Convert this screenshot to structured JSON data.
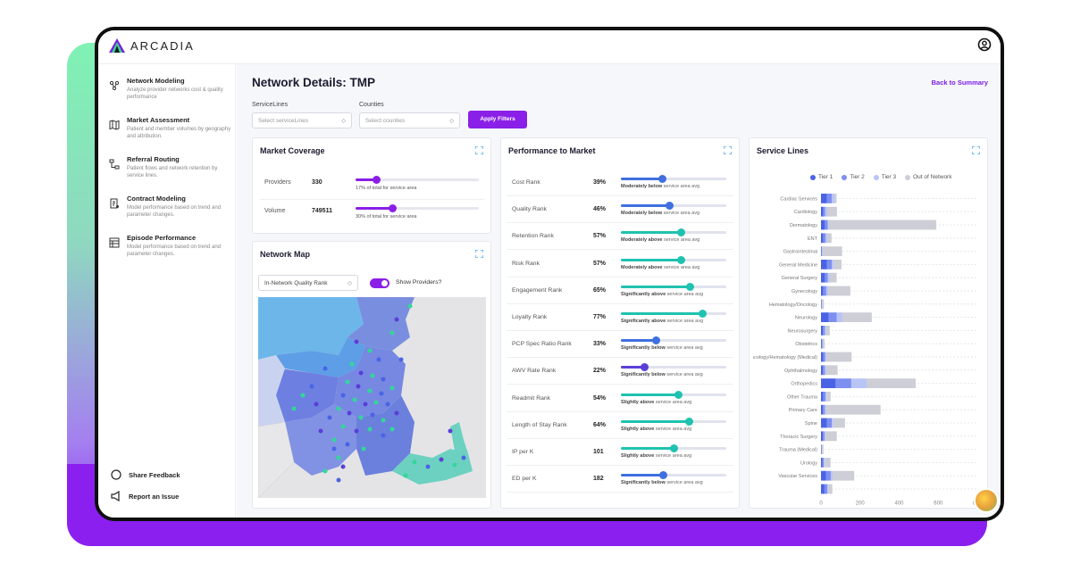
{
  "app": {
    "name": "ARCADIA"
  },
  "sidebar": {
    "items": [
      {
        "title": "Network Modeling",
        "desc": "Analyze provider networks cost & quality performance",
        "icon": "network-icon"
      },
      {
        "title": "Market Assessment",
        "desc": "Patient and member volumes by geography and attribution.",
        "icon": "map-icon"
      },
      {
        "title": "Referral Routing",
        "desc": "Patient flows and network retention by service lines.",
        "icon": "routing-icon"
      },
      {
        "title": "Contract Modeling",
        "desc": "Model performance based on trend and parameter changes.",
        "icon": "contract-icon"
      },
      {
        "title": "Episode Performance",
        "desc": "Model performance based on trend and parameter changes.",
        "icon": "episode-icon"
      }
    ],
    "bottom": [
      {
        "label": "Share Feedback",
        "icon": "chat-icon"
      },
      {
        "label": "Report an Issue",
        "icon": "megaphone-icon"
      }
    ]
  },
  "header": {
    "title": "Network Details: TMP",
    "back_label": "Back to Summary"
  },
  "filters": {
    "service_lines": {
      "label": "ServiceLines",
      "placeholder": "Select serviceLines"
    },
    "counties": {
      "label": "Counties",
      "placeholder": "Select counties"
    },
    "apply_label": "Apply Filters"
  },
  "market_coverage": {
    "title": "Market Coverage",
    "rows": [
      {
        "label": "Providers",
        "value": "330",
        "note": "17% of total for service area",
        "pct": 0.17
      },
      {
        "label": "Volume",
        "value": "749511",
        "note": "30% of total for service area",
        "pct": 0.3
      }
    ]
  },
  "network_map": {
    "title": "Network Map",
    "select_value": "In-Network Quality Rank",
    "toggle_label": "Show Providers?",
    "toggle_on": true
  },
  "performance": {
    "title": "Performance to Market",
    "rows": [
      {
        "label": "Cost Rank",
        "value": "39%",
        "note_bold": "Moderately below",
        "note_rest": " service area avg",
        "pct": 0.39,
        "color": "#3f6fe0"
      },
      {
        "label": "Quality Rank",
        "value": "46%",
        "note_bold": "Moderately below",
        "note_rest": " service area avg",
        "pct": 0.46,
        "color": "#3f6fe0"
      },
      {
        "label": "Retention Rank",
        "value": "57%",
        "note_bold": "Moderately above",
        "note_rest": " service area avg",
        "pct": 0.57,
        "color": "#1fc2b0"
      },
      {
        "label": "Risk Rank",
        "value": "57%",
        "note_bold": "Moderately above",
        "note_rest": " service area avg",
        "pct": 0.57,
        "color": "#1fc2b0"
      },
      {
        "label": "Engagement Rank",
        "value": "65%",
        "note_bold": "Significantly above",
        "note_rest": " service area avg",
        "pct": 0.65,
        "color": "#1fc2b0"
      },
      {
        "label": "Loyalty Rank",
        "value": "77%",
        "note_bold": "Significantly above",
        "note_rest": " service area avg",
        "pct": 0.77,
        "color": "#1fc2b0"
      },
      {
        "label": "PCP Spec Ratio Rank",
        "value": "33%",
        "note_bold": "Significantly below",
        "note_rest": " service area avg",
        "pct": 0.33,
        "color": "#3f6fe0"
      },
      {
        "label": "AWV Rate Rank",
        "value": "22%",
        "note_bold": "Significantly below",
        "note_rest": " service area avg",
        "pct": 0.22,
        "color": "#5b3fd8"
      },
      {
        "label": "Readmit Rank",
        "value": "54%",
        "note_bold": "Slightly above",
        "note_rest": " service area avg",
        "pct": 0.54,
        "color": "#1fc2b0"
      },
      {
        "label": "Length of Stay Rank",
        "value": "64%",
        "note_bold": "Slightly above",
        "note_rest": " service area avg",
        "pct": 0.64,
        "color": "#1fc2b0"
      },
      {
        "label": "IP per K",
        "value": "101",
        "note_bold": "Slightly above",
        "note_rest": " service area avg",
        "pct": 0.5,
        "color": "#1fc2b0"
      },
      {
        "label": "ED per K",
        "value": "182",
        "note_bold": "Significantly below",
        "note_rest": " service area avg",
        "pct": 0.4,
        "color": "#3f6fe0"
      }
    ]
  },
  "chart_data": {
    "type": "bar",
    "title": "Service Lines",
    "series": [
      {
        "name": "Tier 1",
        "color": "#4a63e6",
        "values": [
          30,
          12,
          20,
          12,
          3,
          30,
          20,
          12,
          2,
          40,
          10,
          4,
          12,
          10,
          75,
          12,
          10,
          30,
          10,
          2,
          8,
          25,
          18
        ]
      },
      {
        "name": "Tier 2",
        "color": "#7d8ff0",
        "values": [
          25,
          10,
          15,
          12,
          3,
          25,
          15,
          15,
          2,
          40,
          10,
          3,
          10,
          10,
          80,
          12,
          10,
          25,
          8,
          2,
          6,
          25,
          15
        ]
      },
      {
        "name": "Tier 3",
        "color": "#b9c4f6",
        "values": [
          15,
          10,
          5,
          10,
          2,
          10,
          10,
          10,
          1,
          30,
          5,
          2,
          5,
          5,
          80,
          5,
          5,
          8,
          3,
          1,
          5,
          10,
          5
        ]
      },
      {
        "name": "Out of Network",
        "color": "#cdced6",
        "values": [
          10,
          50,
          550,
          20,
          100,
          40,
          35,
          113,
          10,
          150,
          20,
          10,
          130,
          60,
          250,
          20,
          280,
          60,
          60,
          8,
          30,
          110,
          20
        ]
      }
    ],
    "categories": [
      "Cardiac Services",
      "Cardiology",
      "Dermatology",
      "ENT",
      "Gastrointestinal",
      "General Medicine",
      "General Surgery",
      "Gynecology",
      "Hematology/Oncology",
      "Neurology",
      "Neurosurgery",
      "Obstetrics",
      "Oncology/Hematology (Medical)",
      "Ophthalmology",
      "Orthopedics",
      "Other Trauma",
      "Primary Care",
      "Spine",
      "Thoracic Surgery",
      "Trauma (Medical)",
      "Urology",
      "Vascular Services",
      ""
    ],
    "xticks": [
      "0",
      "200",
      "400",
      "600",
      "800"
    ],
    "xlim": [
      0,
      800
    ]
  }
}
